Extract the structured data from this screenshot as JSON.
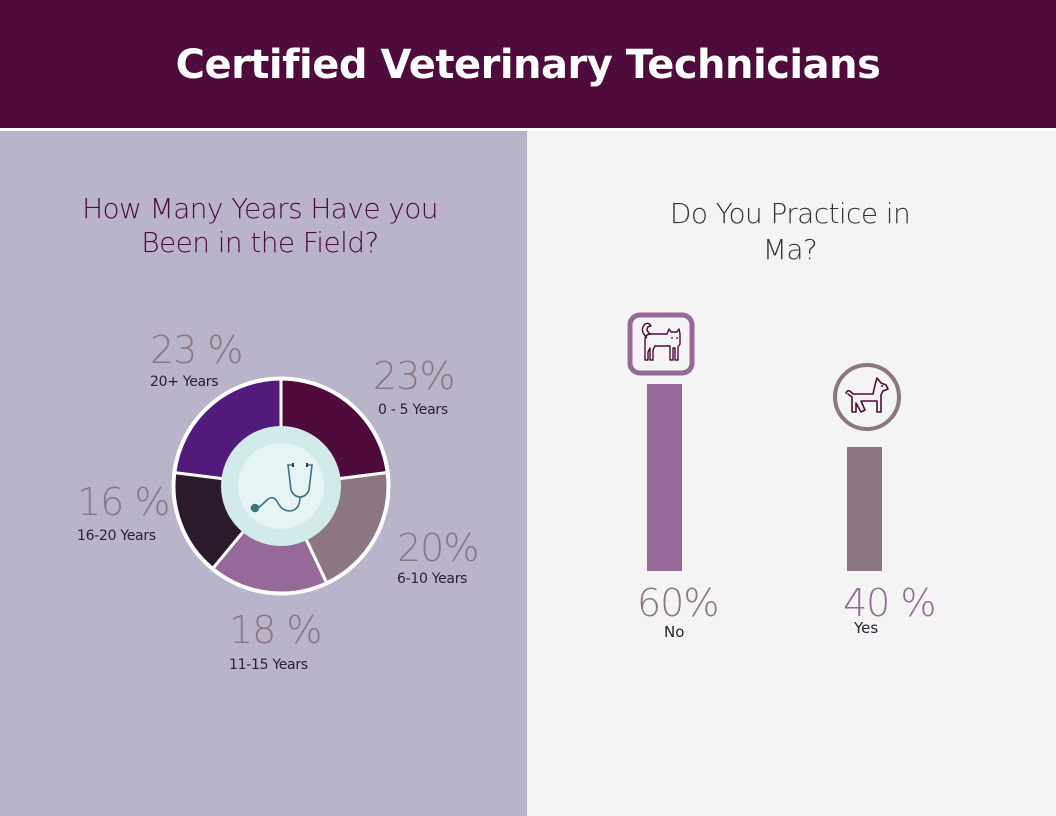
{
  "header": {
    "title": "Certified Veterinary Technicians"
  },
  "left": {
    "question": "How Many Years Have you Been in the Field?",
    "question_line1": "How Many Years Have you",
    "question_line2": "Been in the Field?",
    "center_icon": "stethoscope-icon"
  },
  "right": {
    "question": "Do You Practice in Ma?",
    "question_line1": "Do You Practice in",
    "question_line2": "Ma?",
    "icons": [
      "cat-icon",
      "dog-icon"
    ]
  },
  "colors": {
    "header_bg": "#4e0b3b",
    "left_bg": "#bab4ca",
    "right_bg": "#f5f4f5",
    "slice_0_5": "#4e0b3b",
    "slice_6_10": "#8b7682",
    "slice_11_15": "#966a98",
    "slice_16_20": "#2a1a2c",
    "slice_20_plus": "#521a7b",
    "bar_no": "#966a98",
    "bar_yes": "#8b7682"
  },
  "chart_data": [
    {
      "type": "pie",
      "variant": "donut",
      "title": "How Many Years Have you Been in the Field?",
      "categories": [
        "0 - 5 Years",
        "6-10 Years",
        "11-15 Years",
        "16-20 Years",
        "20+ Years"
      ],
      "values": [
        23,
        20,
        18,
        16,
        23
      ],
      "value_labels": [
        "23%",
        "20%",
        "18 %",
        "16 %",
        "23 %"
      ],
      "unit": "%"
    },
    {
      "type": "bar",
      "title": "Do You Practice in Ma?",
      "categories": [
        "No",
        "Yes"
      ],
      "values": [
        60,
        40
      ],
      "value_labels": [
        "60%",
        "40 %"
      ],
      "unit": "%",
      "grid": false,
      "legend": "none"
    }
  ],
  "donut_labels": [
    {
      "pct": "23%",
      "label": "0 - 5 Years"
    },
    {
      "pct": "20%",
      "label": "6-10 Years"
    },
    {
      "pct": "18 %",
      "label": "11-15 Years"
    },
    {
      "pct": "16 %",
      "label": "16-20 Years"
    },
    {
      "pct": "23 %",
      "label": "20+ Years"
    }
  ],
  "bars": [
    {
      "pct": "60%",
      "label": "No"
    },
    {
      "pct": "40 %",
      "label": "Yes"
    }
  ]
}
